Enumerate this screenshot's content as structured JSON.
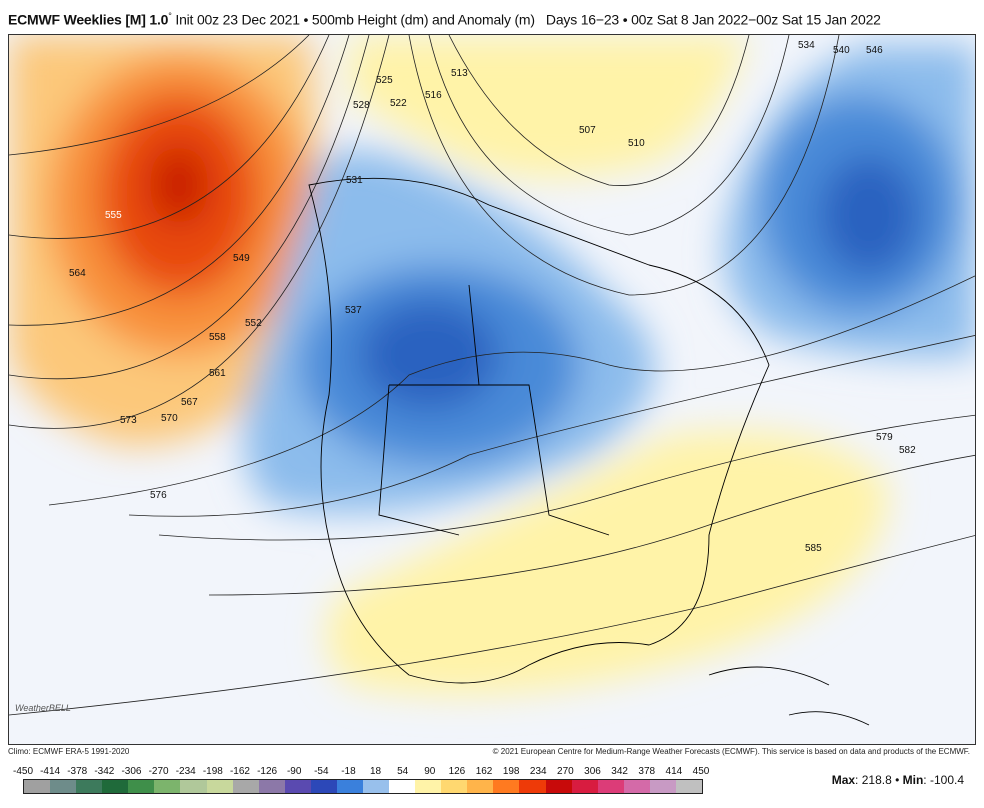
{
  "header": {
    "model": "ECMWF Weeklies [M] 1.0",
    "degree": "°",
    "init": "Init 00z 23 Dec 2021",
    "product": "500mb Height (dm) and Anomaly (m)",
    "period": "Days 16−23 • 00z Sat 8 Jan 2022−00z Sat 15 Jan 2022"
  },
  "map": {
    "contour_labels": [
      "525",
      "522",
      "516",
      "513",
      "528",
      "531",
      "507",
      "510",
      "534",
      "540",
      "546",
      "555",
      "564",
      "549",
      "552",
      "558",
      "561",
      "567",
      "570",
      "573",
      "537",
      "576",
      "579",
      "582",
      "585"
    ],
    "anomaly_colors": {
      "strong_positive": "#d42a05",
      "positive": "#f8a040",
      "weak_positive": "#fff3a8",
      "negative": "#5aa0e6",
      "strong_negative": "#1f5fc4"
    },
    "logo": "WeatherBELL"
  },
  "footer": {
    "climo": "Climo: ECMWF ERA-5 1991-2020",
    "copyright": "© 2021 European Centre for Medium-Range Weather Forecasts (ECMWF). This service is based on data and products of the ECMWF."
  },
  "colorbar": {
    "ticks": [
      "-450",
      "-414",
      "-378",
      "-342",
      "-306",
      "-270",
      "-234",
      "-198",
      "-162",
      "-126",
      "-90",
      "-54",
      "-18",
      "18",
      "54",
      "90",
      "126",
      "162",
      "198",
      "234",
      "270",
      "306",
      "342",
      "378",
      "414",
      "450"
    ],
    "colors": [
      "#a0a0a0",
      "#6e8c8a",
      "#3d7a5c",
      "#1f6a3a",
      "#3f8f4a",
      "#7cb46c",
      "#b0c89a",
      "#c8d89c",
      "#a8a8a8",
      "#8c78a8",
      "#5a4ab0",
      "#2c48b8",
      "#3a80dc",
      "#98c0ec",
      "#ffffff",
      "#fff3a8",
      "#ffd870",
      "#ffb44a",
      "#ff7a20",
      "#ee3a08",
      "#c80a0a",
      "#d81c40",
      "#dc3c78",
      "#d46aa8",
      "#c89ac4",
      "#c0c0c0"
    ]
  },
  "stats": {
    "max_label": "Max",
    "max": "218.8",
    "min_label": "Min",
    "min": "-100.4"
  }
}
